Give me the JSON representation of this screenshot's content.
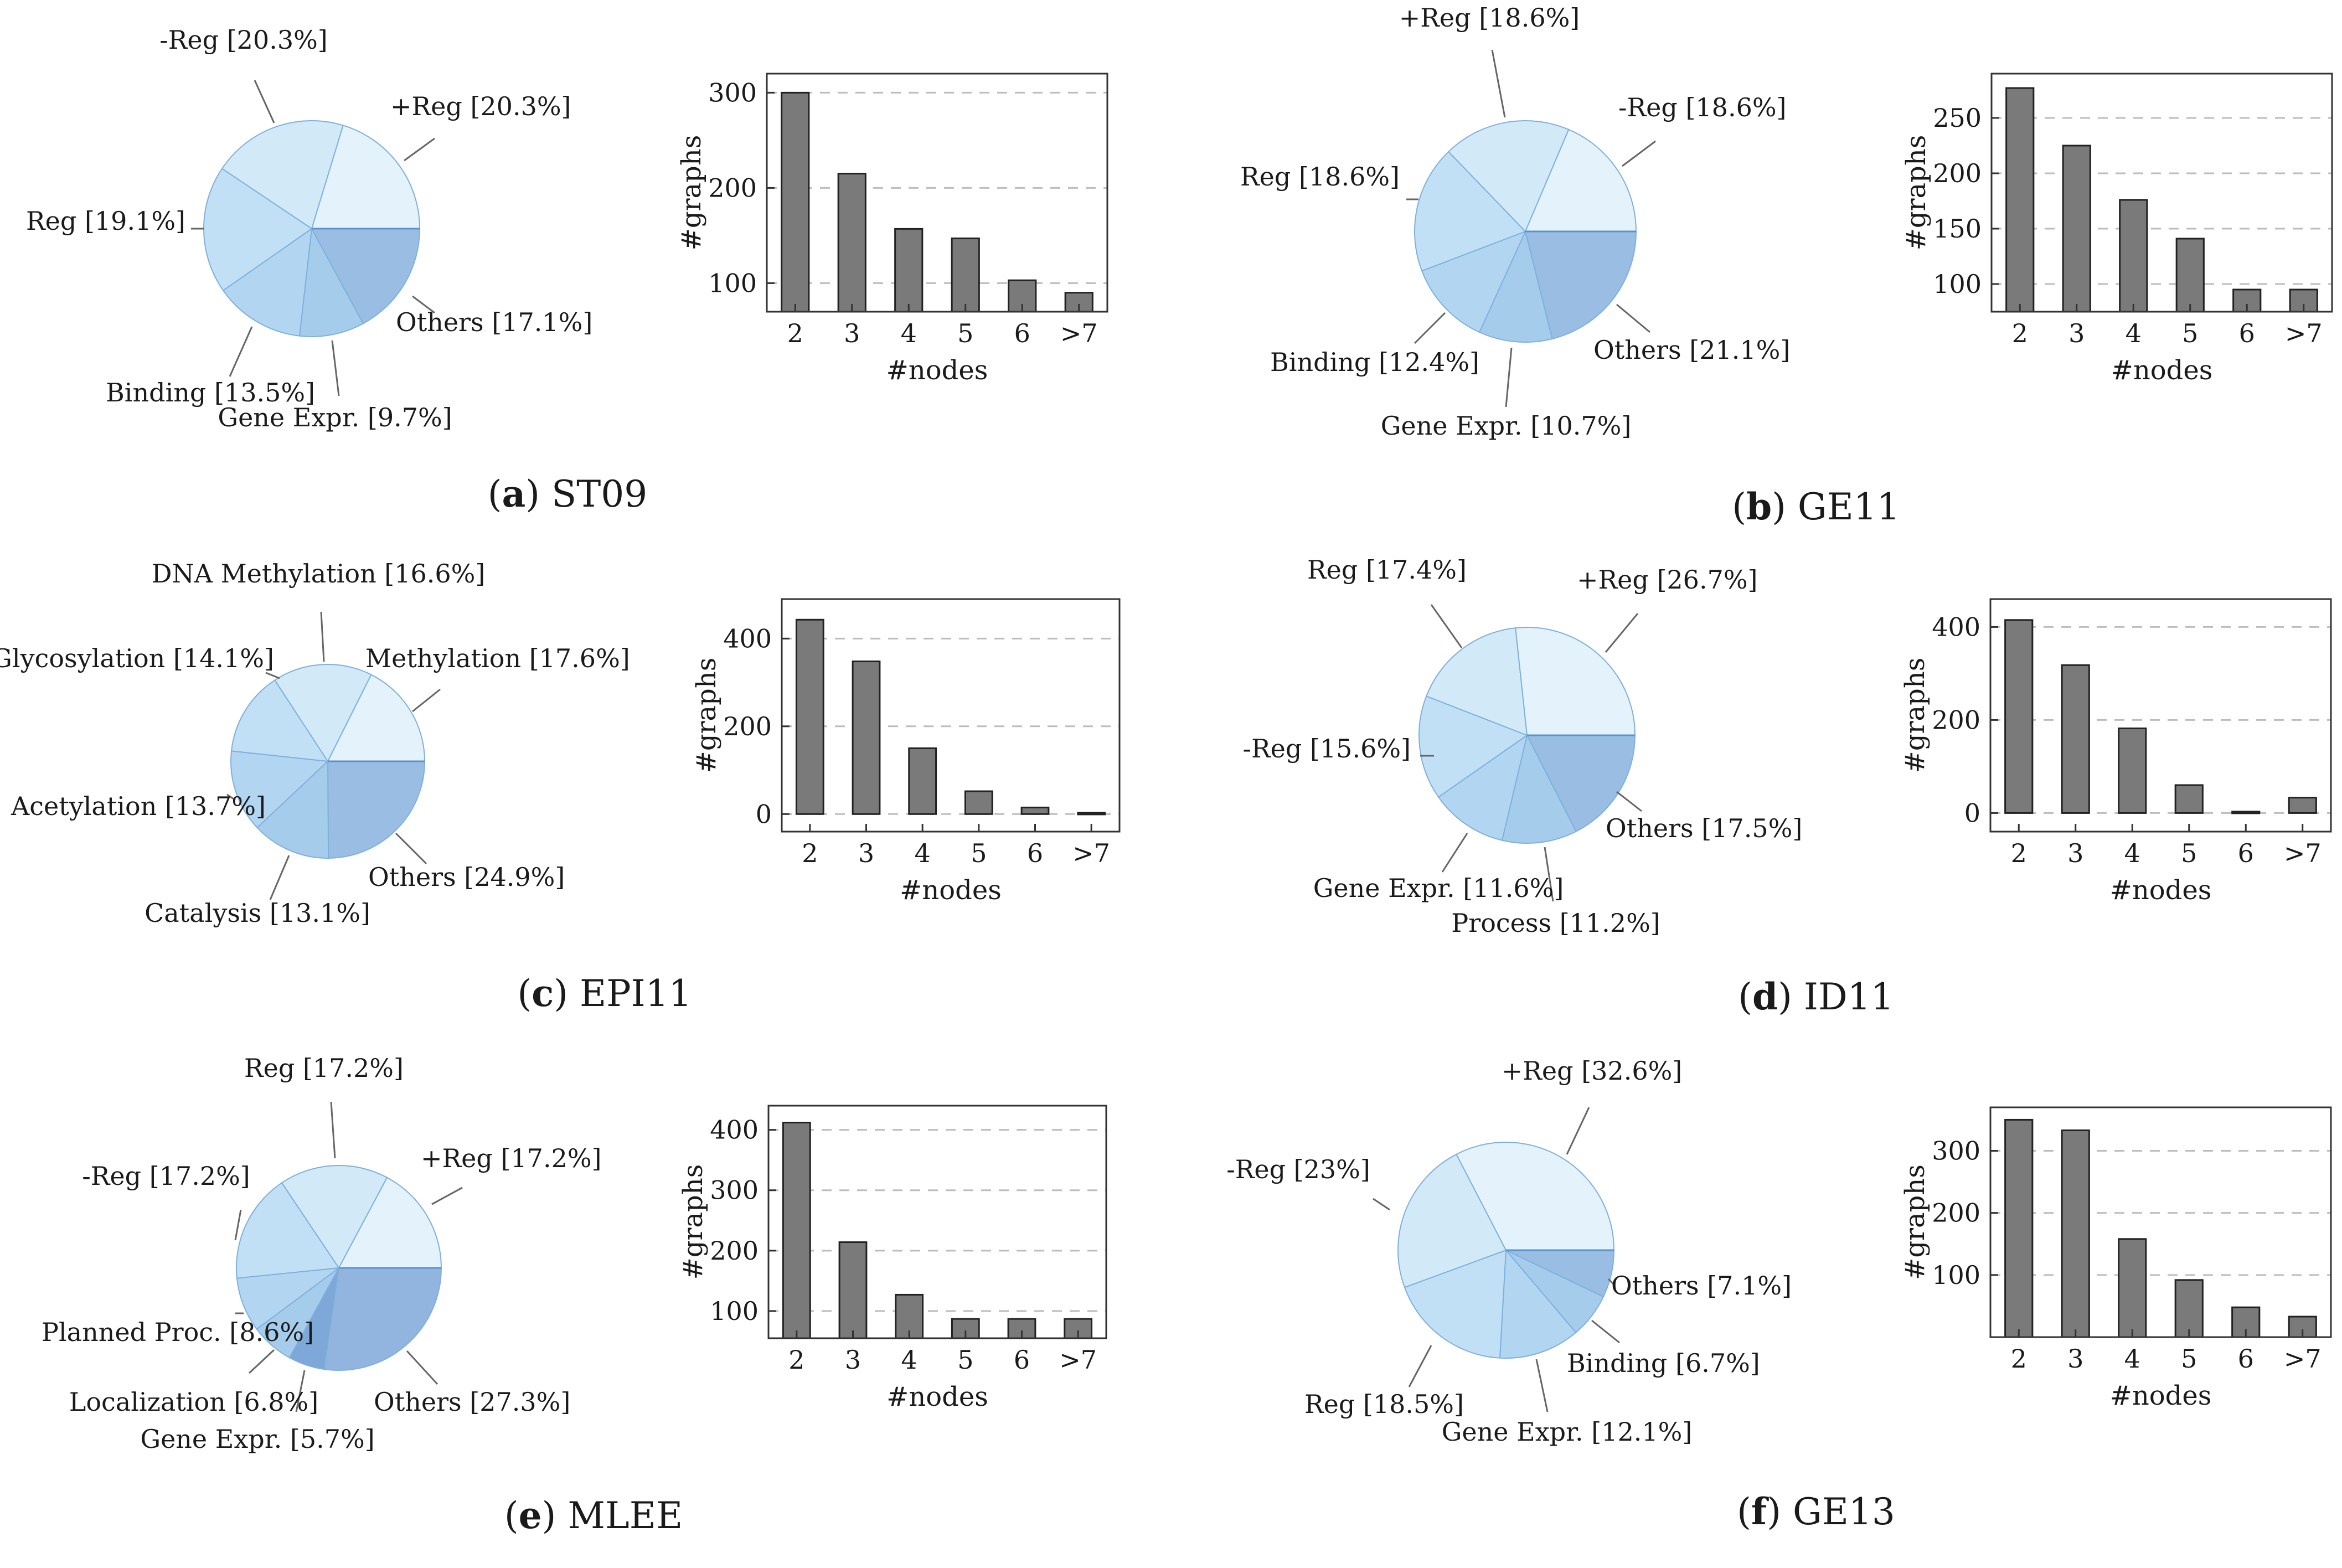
{
  "figure": {
    "panels": [
      {
        "id": "a",
        "name": "ST09",
        "pie": [
          {
            "label": "Others [17.1%]",
            "value": 17.1,
            "color": "#99bde3"
          },
          {
            "label": "Gene Expr. [9.7%]",
            "value": 9.7,
            "color": "#a6ccec"
          },
          {
            "label": "Binding [13.5%]",
            "value": 13.5,
            "color": "#b2d6f1"
          },
          {
            "label": "Reg [19.1%]",
            "value": 19.1,
            "color": "#c2e0f5"
          },
          {
            "label": "-Reg [20.3%]",
            "value": 20.3,
            "color": "#d2eaf8"
          },
          {
            "label": "+Reg [20.3%]",
            "value": 20.3,
            "color": "#e4f3fb"
          }
        ],
        "bars": {
          "categories": [
            "2",
            "3",
            "4",
            "5",
            "6",
            ">7"
          ],
          "values": [
            300,
            215,
            157,
            147,
            103,
            90
          ],
          "ylim": [
            70,
            320
          ],
          "yticks": [
            "100",
            "200",
            "300"
          ],
          "ylabel": "#graphs",
          "xlabel": "#nodes"
        }
      },
      {
        "id": "b",
        "name": "GE11",
        "pie": [
          {
            "label": "Others [21.1%]",
            "value": 21.1,
            "color": "#99bde3"
          },
          {
            "label": "Gene Expr. [10.7%]",
            "value": 10.7,
            "color": "#a6ccec"
          },
          {
            "label": "Binding [12.4%]",
            "value": 12.4,
            "color": "#b2d6f1"
          },
          {
            "label": "Reg [18.6%]",
            "value": 18.6,
            "color": "#c2e0f5"
          },
          {
            "label": "+Reg [18.6%]",
            "value": 18.6,
            "color": "#d2eaf8"
          },
          {
            "label": "-Reg [18.6%]",
            "value": 18.6,
            "color": "#e4f3fb"
          }
        ],
        "bars": {
          "categories": [
            "2",
            "3",
            "4",
            "5",
            "6",
            ">7"
          ],
          "values": [
            277,
            225,
            176,
            141,
            95,
            95
          ],
          "ylim": [
            75,
            290
          ],
          "yticks": [
            "100",
            "150",
            "200",
            "250"
          ],
          "ylabel": "#graphs",
          "xlabel": "#nodes"
        }
      },
      {
        "id": "c",
        "name": "EPI11",
        "pie": [
          {
            "label": "Others [24.9%]",
            "value": 24.9,
            "color": "#99bde3"
          },
          {
            "label": "Catalysis [13.1%]",
            "value": 13.1,
            "color": "#a6ccec"
          },
          {
            "label": "Acetylation [13.7%]",
            "value": 13.7,
            "color": "#b2d6f1"
          },
          {
            "label": "Glycosylation [14.1%]",
            "value": 14.1,
            "color": "#c2e0f5"
          },
          {
            "label": "DNA Methylation [16.6%]",
            "value": 16.6,
            "color": "#d2eaf8"
          },
          {
            "label": "Methylation [17.6%]",
            "value": 17.6,
            "color": "#e4f3fb"
          }
        ],
        "bars": {
          "categories": [
            "2",
            "3",
            "4",
            "5",
            "6",
            ">7"
          ],
          "values": [
            443,
            348,
            150,
            52,
            15,
            3
          ],
          "ylim": [
            -40,
            490
          ],
          "yticks": [
            "0",
            "200",
            "400"
          ],
          "ylabel": "#graphs",
          "xlabel": "#nodes"
        }
      },
      {
        "id": "d",
        "name": "ID11",
        "pie": [
          {
            "label": "Others [17.5%]",
            "value": 17.5,
            "color": "#99bde3"
          },
          {
            "label": "Process [11.2%]",
            "value": 11.2,
            "color": "#a6ccec"
          },
          {
            "label": "Gene Expr. [11.6%]",
            "value": 11.6,
            "color": "#b2d6f1"
          },
          {
            "label": "-Reg [15.6%]",
            "value": 15.6,
            "color": "#c2e0f5"
          },
          {
            "label": "Reg [17.4%]",
            "value": 17.4,
            "color": "#d2eaf8"
          },
          {
            "label": "+Reg [26.7%]",
            "value": 26.7,
            "color": "#e4f3fb"
          }
        ],
        "bars": {
          "categories": [
            "2",
            "3",
            "4",
            "5",
            "6",
            ">7"
          ],
          "values": [
            415,
            318,
            182,
            60,
            3,
            33
          ],
          "ylim": [
            -40,
            460
          ],
          "yticks": [
            "0",
            "200",
            "400"
          ],
          "ylabel": "#graphs",
          "xlabel": "#nodes"
        }
      },
      {
        "id": "e",
        "name": "MLEE",
        "pie": [
          {
            "label": "Others [27.3%]",
            "value": 27.3,
            "color": "#91b5df"
          },
          {
            "label": "Gene Expr. [5.7%]",
            "value": 5.7,
            "color": "#7da8d8"
          },
          {
            "label": "Localization [6.8%]",
            "value": 6.8,
            "color": "#a6ccec"
          },
          {
            "label": "Planned Proc. [8.6%]",
            "value": 8.6,
            "color": "#b2d6f1"
          },
          {
            "label": "-Reg [17.2%]",
            "value": 17.2,
            "color": "#c2e0f5"
          },
          {
            "label": "Reg [17.2%]",
            "value": 17.2,
            "color": "#d2eaf8"
          },
          {
            "label": "+Reg [17.2%]",
            "value": 17.2,
            "color": "#e4f3fb"
          }
        ],
        "bars": {
          "categories": [
            "2",
            "3",
            "4",
            "5",
            "6",
            ">7"
          ],
          "values": [
            412,
            214,
            127,
            87,
            87,
            87
          ],
          "ylim": [
            55,
            440
          ],
          "yticks": [
            "100",
            "200",
            "300",
            "400"
          ],
          "ylabel": "#graphs",
          "xlabel": "#nodes"
        }
      },
      {
        "id": "f",
        "name": "GE13",
        "pie": [
          {
            "label": "Others [7.1%]",
            "value": 7.1,
            "color": "#99bde3"
          },
          {
            "label": "Binding [6.7%]",
            "value": 6.7,
            "color": "#a6ccec"
          },
          {
            "label": "Gene Expr. [12.1%]",
            "value": 12.1,
            "color": "#b2d6f1"
          },
          {
            "label": "Reg [18.5%]",
            "value": 18.5,
            "color": "#c2e0f5"
          },
          {
            "label": "-Reg [23%]",
            "value": 23,
            "color": "#d2eaf8"
          },
          {
            "label": "+Reg [32.6%]",
            "value": 32.6,
            "color": "#e4f3fb"
          }
        ],
        "bars": {
          "categories": [
            "2",
            "3",
            "4",
            "5",
            "6",
            ">7"
          ],
          "values": [
            350,
            333,
            158,
            92,
            48,
            33
          ],
          "ylim": [
            0,
            370
          ],
          "yticks": [
            "100",
            "200",
            "300"
          ],
          "ylabel": "#graphs",
          "xlabel": "#nodes"
        }
      }
    ]
  },
  "chart_data": [
    {
      "type": "pie",
      "title": "(a) ST09",
      "labels": [
        "Others",
        "Gene Expr.",
        "Binding",
        "Reg",
        "-Reg",
        "+Reg"
      ],
      "values": [
        17.1,
        9.7,
        13.5,
        19.1,
        20.3,
        20.3
      ]
    },
    {
      "type": "bar",
      "title": "(a) ST09",
      "categories": [
        "2",
        "3",
        "4",
        "5",
        "6",
        ">7"
      ],
      "values": [
        300,
        215,
        157,
        147,
        103,
        90
      ],
      "xlabel": "#nodes",
      "ylabel": "#graphs",
      "ylim": [
        70,
        320
      ]
    },
    {
      "type": "pie",
      "title": "(b) GE11",
      "labels": [
        "Others",
        "Gene Expr.",
        "Binding",
        "Reg",
        "+Reg",
        "-Reg"
      ],
      "values": [
        21.1,
        10.7,
        12.4,
        18.6,
        18.6,
        18.6
      ]
    },
    {
      "type": "bar",
      "title": "(b) GE11",
      "categories": [
        "2",
        "3",
        "4",
        "5",
        "6",
        ">7"
      ],
      "values": [
        277,
        225,
        176,
        141,
        95,
        95
      ],
      "xlabel": "#nodes",
      "ylabel": "#graphs",
      "ylim": [
        75,
        290
      ]
    },
    {
      "type": "pie",
      "title": "(c) EPI11",
      "labels": [
        "Others",
        "Catalysis",
        "Acetylation",
        "Glycosylation",
        "DNA Methylation",
        "Methylation"
      ],
      "values": [
        24.9,
        13.1,
        13.7,
        14.1,
        16.6,
        17.6
      ]
    },
    {
      "type": "bar",
      "title": "(c) EPI11",
      "categories": [
        "2",
        "3",
        "4",
        "5",
        "6",
        ">7"
      ],
      "values": [
        443,
        348,
        150,
        52,
        15,
        3
      ],
      "xlabel": "#nodes",
      "ylabel": "#graphs",
      "ylim": [
        -40,
        490
      ]
    },
    {
      "type": "pie",
      "title": "(d) ID11",
      "labels": [
        "Others",
        "Process",
        "Gene Expr.",
        "-Reg",
        "Reg",
        "+Reg"
      ],
      "values": [
        17.5,
        11.2,
        11.6,
        15.6,
        17.4,
        26.7
      ]
    },
    {
      "type": "bar",
      "title": "(d) ID11",
      "categories": [
        "2",
        "3",
        "4",
        "5",
        "6",
        ">7"
      ],
      "values": [
        415,
        318,
        182,
        60,
        3,
        33
      ],
      "xlabel": "#nodes",
      "ylabel": "#graphs",
      "ylim": [
        -40,
        460
      ]
    },
    {
      "type": "pie",
      "title": "(e) MLEE",
      "labels": [
        "Others",
        "Gene Expr.",
        "Localization",
        "Planned Proc.",
        "-Reg",
        "Reg",
        "+Reg"
      ],
      "values": [
        27.3,
        5.7,
        6.8,
        8.6,
        17.2,
        17.2,
        17.2
      ]
    },
    {
      "type": "bar",
      "title": "(e) MLEE",
      "categories": [
        "2",
        "3",
        "4",
        "5",
        "6",
        ">7"
      ],
      "values": [
        412,
        214,
        127,
        87,
        87,
        87
      ],
      "xlabel": "#nodes",
      "ylabel": "#graphs",
      "ylim": [
        55,
        440
      ]
    },
    {
      "type": "pie",
      "title": "(f) GE13",
      "labels": [
        "Others",
        "Binding",
        "Gene Expr.",
        "Reg",
        "-Reg",
        "+Reg"
      ],
      "values": [
        7.1,
        6.7,
        12.1,
        18.5,
        23,
        32.6
      ]
    },
    {
      "type": "bar",
      "title": "(f) GE13",
      "categories": [
        "2",
        "3",
        "4",
        "5",
        "6",
        ">7"
      ],
      "values": [
        350,
        333,
        158,
        92,
        48,
        33
      ],
      "xlabel": "#nodes",
      "ylabel": "#graphs",
      "ylim": [
        0,
        370
      ]
    }
  ]
}
